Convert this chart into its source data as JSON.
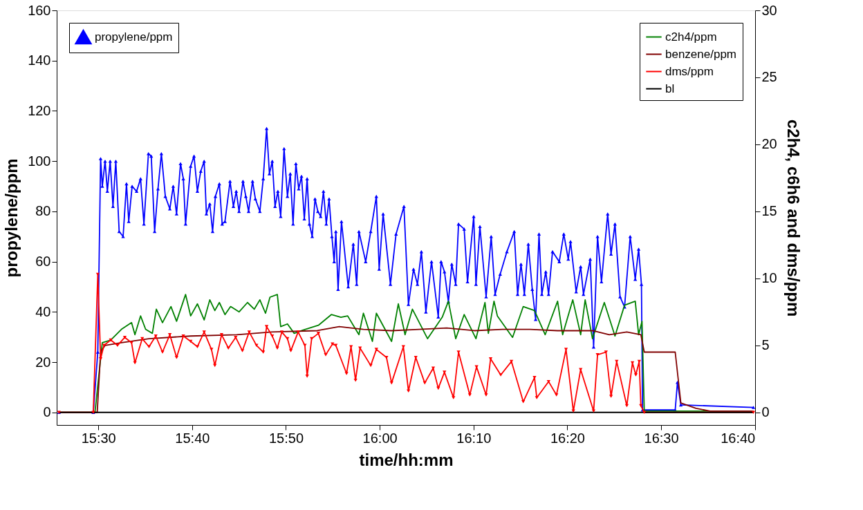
{
  "chart_data": {
    "type": "line",
    "xlabel": "time/hh:mm",
    "ylabel": "propylene/ppm",
    "y2label": "c2h4, c6h6 and dms/ppm",
    "xlim": [
      15.426,
      16.667
    ],
    "xticks": [
      {
        "value": 15.5,
        "label": "15:30"
      },
      {
        "value": 15.6667,
        "label": "15:40"
      },
      {
        "value": 15.8333,
        "label": "15:50"
      },
      {
        "value": 16.0,
        "label": "16:00"
      },
      {
        "value": 16.1667,
        "label": "16:10"
      },
      {
        "value": 16.3333,
        "label": "16:20"
      },
      {
        "value": 16.5,
        "label": "16:30"
      },
      {
        "value": 16.6667,
        "label": "16:40"
      }
    ],
    "ylim": [
      -5,
      160
    ],
    "yticks": [
      0,
      20,
      40,
      60,
      80,
      100,
      120,
      140,
      160
    ],
    "y2lim": [
      -0.94,
      30
    ],
    "y2ticks": [
      0,
      5,
      10,
      15,
      20,
      25,
      30
    ],
    "grid": false,
    "legend": "top right",
    "series": [
      {
        "name": "propylene/ppm",
        "color": "#0000ff",
        "marker": "triangle",
        "x": [
          15.43,
          15.491,
          15.499,
          15.504,
          15.507,
          15.512,
          15.516,
          15.521,
          15.526,
          15.531,
          15.537,
          15.544,
          15.55,
          15.554,
          15.56,
          15.568,
          15.575,
          15.581,
          15.589,
          15.594,
          15.6,
          15.606,
          15.612,
          15.619,
          15.627,
          15.633,
          15.639,
          15.646,
          15.651,
          15.655,
          15.664,
          15.67,
          15.676,
          15.682,
          15.688,
          15.692,
          15.698,
          15.703,
          15.708,
          15.715,
          15.72,
          15.725,
          15.734,
          15.74,
          15.745,
          15.75,
          15.757,
          15.762,
          15.767,
          15.774,
          15.779,
          15.787,
          15.793,
          15.799,
          15.804,
          15.809,
          15.814,
          15.819,
          15.824,
          15.83,
          15.836,
          15.841,
          15.846,
          15.851,
          15.856,
          15.861,
          15.866,
          15.871,
          15.875,
          15.88,
          15.885,
          15.89,
          15.895,
          15.9,
          15.905,
          15.91,
          15.915,
          15.919,
          15.922,
          15.926,
          15.932,
          15.944,
          15.953,
          15.959,
          15.963,
          15.975,
          15.984,
          15.994,
          15.999,
          16.006,
          16.019,
          16.029,
          16.043,
          16.051,
          16.06,
          16.067,
          16.074,
          16.082,
          16.092,
          16.104,
          16.109,
          16.115,
          16.122,
          16.128,
          16.135,
          16.14,
          16.15,
          16.156,
          16.167,
          16.171,
          16.178,
          16.189,
          16.198,
          16.205,
          16.214,
          16.226,
          16.239,
          16.245,
          16.251,
          16.257,
          16.264,
          16.271,
          16.277,
          16.283,
          16.288,
          16.295,
          16.3,
          16.307,
          16.319,
          16.327,
          16.335,
          16.339,
          16.349,
          16.357,
          16.362,
          16.374,
          16.38,
          16.387,
          16.394,
          16.405,
          16.411,
          16.418,
          16.427,
          16.435,
          16.445,
          16.454,
          16.46,
          16.465,
          16.467,
          16.525,
          16.529,
          16.535,
          16.664
        ],
        "values": [
          0,
          0,
          24,
          101,
          90,
          100,
          88,
          100,
          82,
          100,
          72,
          70,
          91,
          76,
          90,
          88,
          93,
          75,
          103,
          102,
          72,
          89,
          103,
          86,
          81,
          90,
          79,
          99,
          93,
          75,
          98,
          102,
          88,
          96,
          100,
          79,
          83,
          72,
          86,
          91,
          75,
          76,
          92,
          82,
          88,
          80,
          92,
          86,
          80,
          92,
          85,
          80,
          93,
          113,
          95,
          100,
          82,
          88,
          78,
          105,
          86,
          95,
          75,
          99,
          89,
          94,
          77,
          93,
          75,
          70,
          85,
          80,
          78,
          88,
          75,
          85,
          70,
          60,
          72,
          49,
          76,
          50,
          67,
          51,
          72,
          60,
          72,
          86,
          57,
          79,
          51,
          71,
          82,
          43,
          57,
          51,
          64,
          40,
          60,
          38,
          60,
          56,
          44,
          59,
          51,
          75,
          73,
          52,
          78,
          51,
          74,
          46,
          70,
          47,
          55,
          64,
          72,
          47,
          59,
          47,
          67,
          49,
          37,
          71,
          47,
          56,
          47,
          64,
          60,
          71,
          61,
          68,
          48,
          58,
          47,
          61,
          26,
          70,
          52,
          79,
          63,
          75,
          46,
          42,
          70,
          53,
          65,
          51,
          1,
          1,
          12,
          3,
          2
        ]
      },
      {
        "name": "c2h4/ppm",
        "color": "#008000",
        "axis": "y2",
        "marker": "none",
        "x": [
          15.43,
          15.494,
          15.499,
          15.507,
          15.522,
          15.541,
          15.559,
          15.565,
          15.575,
          15.584,
          15.596,
          15.603,
          15.614,
          15.629,
          15.639,
          15.655,
          15.664,
          15.676,
          15.688,
          15.698,
          15.707,
          15.715,
          15.725,
          15.735,
          15.75,
          15.765,
          15.777,
          15.787,
          15.797,
          15.805,
          15.818,
          15.824,
          15.836,
          15.848,
          15.861,
          15.891,
          15.914,
          15.931,
          15.943,
          15.963,
          15.971,
          15.987,
          15.994,
          16.021,
          16.033,
          16.045,
          16.058,
          16.085,
          16.111,
          16.122,
          16.135,
          16.15,
          16.171,
          16.187,
          16.193,
          16.203,
          16.209,
          16.236,
          16.255,
          16.275,
          16.294,
          16.316,
          16.325,
          16.343,
          16.357,
          16.365,
          16.378,
          16.399,
          16.418,
          16.435,
          16.454,
          16.46,
          16.466,
          16.47,
          16.664
        ],
        "values": [
          0,
          0,
          2,
          5.2,
          5.4,
          6.2,
          6.7,
          5.8,
          7.2,
          6.2,
          5.9,
          7.7,
          6.7,
          7.9,
          6.8,
          8.8,
          7.2,
          8.1,
          6.9,
          8.4,
          7.6,
          8.2,
          7.3,
          7.9,
          7.5,
          8.2,
          7.7,
          8.4,
          7.4,
          8.6,
          8.8,
          6.4,
          6.6,
          5.9,
          6.1,
          6.5,
          7.3,
          7.1,
          7.2,
          5.8,
          7.4,
          5.3,
          7.4,
          5.3,
          8.1,
          5.8,
          7.7,
          5.5,
          7.1,
          8.3,
          5.5,
          7.3,
          5.5,
          8.2,
          5.9,
          8.3,
          7.2,
          5.6,
          7.9,
          7.6,
          5.8,
          8.3,
          5.8,
          8.4,
          5.8,
          8.4,
          5.5,
          8.2,
          5.7,
          8.0,
          8.3,
          5.8,
          6.8,
          0.1,
          0.1
        ]
      },
      {
        "name": "benzene/ppm",
        "color": "#800000",
        "axis": "y2",
        "marker": "none",
        "x": [
          15.43,
          15.498,
          15.504,
          15.512,
          15.541,
          15.59,
          15.664,
          15.746,
          15.808,
          15.889,
          15.928,
          15.971,
          16.021,
          16.07,
          16.119,
          16.168,
          16.218,
          16.267,
          16.316,
          16.378,
          16.408,
          16.439,
          16.464,
          16.47,
          16.525,
          16.535,
          16.562,
          16.587,
          16.664
        ],
        "values": [
          0,
          0,
          4.5,
          5.0,
          5.2,
          5.5,
          5.7,
          5.8,
          6.0,
          6.1,
          6.4,
          6.2,
          6.1,
          6.2,
          6.3,
          6.1,
          6.2,
          6.2,
          6.1,
          6.1,
          5.8,
          6.0,
          5.8,
          4.5,
          4.5,
          0.7,
          0.3,
          0.1,
          0.1
        ]
      },
      {
        "name": "dms/ppm",
        "color": "#ff0000",
        "axis": "y2",
        "marker": "triangle-down",
        "x": [
          15.43,
          15.491,
          15.499,
          15.504,
          15.51,
          15.522,
          15.534,
          15.547,
          15.559,
          15.565,
          15.578,
          15.59,
          15.602,
          15.614,
          15.627,
          15.639,
          15.651,
          15.664,
          15.676,
          15.688,
          15.701,
          15.707,
          15.719,
          15.731,
          15.744,
          15.756,
          15.768,
          15.781,
          15.793,
          15.799,
          15.809,
          15.818,
          15.826,
          15.836,
          15.842,
          15.855,
          15.867,
          15.871,
          15.879,
          15.891,
          15.904,
          15.916,
          15.922,
          15.941,
          15.949,
          15.957,
          15.965,
          15.984,
          15.994,
          16.012,
          16.021,
          16.042,
          16.051,
          16.064,
          16.08,
          16.095,
          16.104,
          16.115,
          16.131,
          16.14,
          16.16,
          16.172,
          16.189,
          16.197,
          16.215,
          16.234,
          16.255,
          16.275,
          16.279,
          16.3,
          16.314,
          16.331,
          16.344,
          16.357,
          16.38,
          16.387,
          16.402,
          16.411,
          16.421,
          16.439,
          16.449,
          16.455,
          16.461,
          16.464,
          16.47,
          16.664
        ],
        "values": [
          0,
          0,
          10.3,
          4.0,
          5.0,
          5.4,
          5.0,
          5.6,
          5.2,
          3.7,
          5.5,
          4.9,
          5.7,
          4.5,
          5.8,
          4.1,
          5.7,
          5.3,
          4.9,
          6.0,
          4.7,
          3.5,
          5.8,
          4.8,
          5.6,
          4.6,
          6.0,
          5.0,
          4.5,
          6.4,
          5.7,
          4.8,
          6.0,
          5.5,
          4.6,
          6.0,
          5.0,
          2.7,
          5.5,
          5.9,
          4.3,
          5.1,
          5.0,
          2.9,
          4.9,
          2.4,
          4.8,
          3.5,
          4.7,
          4.1,
          2.2,
          4.9,
          1.6,
          4.1,
          2.2,
          3.3,
          1.8,
          3.0,
          1.1,
          4.5,
          1.3,
          3.4,
          1.3,
          4.0,
          2.8,
          3.8,
          0.8,
          2.6,
          1.1,
          2.3,
          1.3,
          4.7,
          0.1,
          3.2,
          0.1,
          4.3,
          4.5,
          1.2,
          3.8,
          0.5,
          3.7,
          2.8,
          3.8,
          0.5,
          0,
          0
        ]
      },
      {
        "name": "bl",
        "color": "#000000",
        "axis": "y2",
        "marker": "none",
        "x": [
          15.43,
          16.664
        ],
        "values": [
          0,
          0
        ]
      }
    ]
  }
}
